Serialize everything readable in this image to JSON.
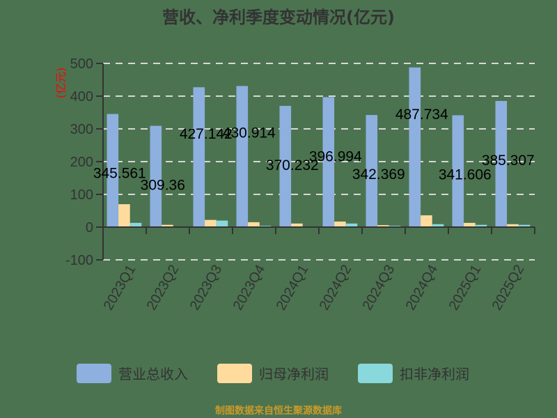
{
  "chart_data": {
    "type": "bar",
    "title": "营收、净利季度变动情况(亿元)",
    "xlabel": "",
    "ylabel": "(亿元)",
    "ylim": [
      -100,
      500
    ],
    "yticks": [
      -100,
      0,
      100,
      200,
      300,
      400,
      500
    ],
    "grid": true,
    "legend_position": "bottom",
    "categories": [
      "2023Q1",
      "2023Q2",
      "2023Q3",
      "2023Q4",
      "2024Q1",
      "2024Q2",
      "2024Q3",
      "2024Q4",
      "2025Q1",
      "2025Q2"
    ],
    "series": [
      {
        "name": "营业总收入",
        "color": "#8eb0de",
        "values": [
          345.561,
          309.36,
          427.142,
          430.914,
          370.232,
          396.994,
          342.369,
          487.734,
          341.606,
          385.307
        ],
        "labeled": true
      },
      {
        "name": "归母净利润",
        "color": "#ffdc9e",
        "values": [
          70,
          7,
          22,
          15,
          11,
          17,
          6,
          36,
          13,
          9
        ],
        "labeled": false
      },
      {
        "name": "扣非净利润",
        "color": "#88d8dc",
        "values": [
          13,
          -0.5,
          20,
          4,
          1,
          11,
          4,
          9,
          7,
          7
        ],
        "labeled": false
      }
    ],
    "data_labels": [
      "345.561",
      "309.36",
      "427.142",
      "430.914",
      "370.232",
      "396.994",
      "342.369",
      "487.734",
      "341.606",
      "385.307"
    ]
  },
  "page": {
    "title": "营收、净利季度变动情况(亿元)",
    "y_axis_label": "(亿元)",
    "source_note": "制图数据来自恒生聚源数据库",
    "background": "#4b7350"
  },
  "legend": {
    "items": [
      {
        "label": "营业总收入",
        "color": "#8eb0de"
      },
      {
        "label": "归母净利润",
        "color": "#ffdc9e"
      },
      {
        "label": "扣非净利润",
        "color": "#88d8dc"
      }
    ]
  }
}
